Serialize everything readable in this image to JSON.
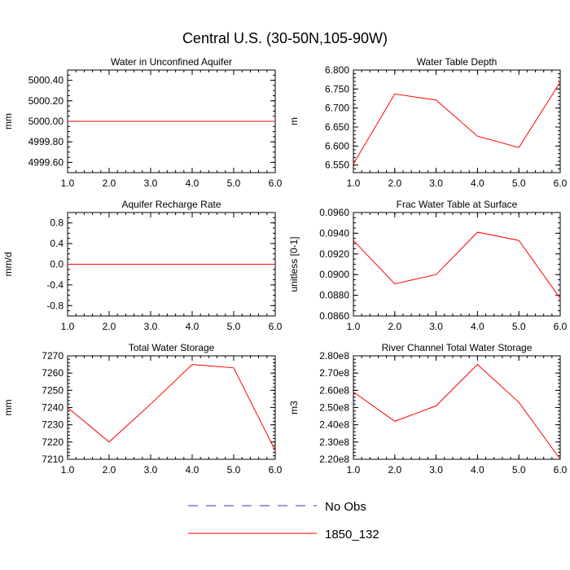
{
  "figure": {
    "title": "Central U.S. (30-50N,105-90W)"
  },
  "colors": {
    "series_1850_132": "#ff0000",
    "series_no_obs": "#3333cc",
    "axis": "#000000"
  },
  "legend": [
    {
      "label": "No Obs",
      "style": "dashed",
      "color": "#3333cc"
    },
    {
      "label": "1850_132",
      "style": "solid",
      "color": "#ff0000"
    }
  ],
  "chart_data": [
    {
      "type": "line",
      "title": "Water in Unconfined Aquifer",
      "xlabel": "",
      "ylabel": "mm",
      "x": [
        1,
        2,
        3,
        4,
        5,
        6
      ],
      "xlim": [
        1,
        6
      ],
      "xticks": [
        "1.0",
        "2.0",
        "3.0",
        "4.0",
        "5.0",
        "6.0"
      ],
      "ylim": [
        4999.5,
        5000.5
      ],
      "yticks": [
        5000.4,
        5000.2,
        5000.0,
        4999.8,
        4999.6
      ],
      "ytick_labels": [
        "5000.40",
        "5000.20",
        "5000.00",
        "4999.80",
        "4999.60"
      ],
      "yminor": 0.05,
      "series": [
        {
          "name": "1850_132",
          "values": [
            5000,
            5000,
            5000,
            5000,
            5000,
            5000
          ]
        }
      ]
    },
    {
      "type": "line",
      "title": "Water Table Depth",
      "xlabel": "",
      "ylabel": "m",
      "x": [
        1,
        2,
        3,
        4,
        5,
        6
      ],
      "xlim": [
        1,
        6
      ],
      "xticks": [
        "1.0",
        "2.0",
        "3.0",
        "4.0",
        "5.0",
        "6.0"
      ],
      "ylim": [
        6.53,
        6.8
      ],
      "yticks": [
        6.8,
        6.75,
        6.7,
        6.65,
        6.6,
        6.55
      ],
      "ytick_labels": [
        "6.800",
        "6.750",
        "6.700",
        "6.650",
        "6.600",
        "6.550"
      ],
      "yminor": 0.01,
      "series": [
        {
          "name": "1850_132",
          "values": [
            6.553,
            6.737,
            6.721,
            6.626,
            6.596,
            6.768
          ]
        }
      ]
    },
    {
      "type": "line",
      "title": "Aquifer Recharge Rate",
      "xlabel": "",
      "ylabel": "mm/d",
      "x": [
        1,
        2,
        3,
        4,
        5,
        6
      ],
      "xlim": [
        1,
        6
      ],
      "xticks": [
        "1.0",
        "2.0",
        "3.0",
        "4.0",
        "5.0",
        "6.0"
      ],
      "ylim": [
        -1.0,
        1.0
      ],
      "yticks": [
        0.8,
        0.4,
        0.0,
        -0.4,
        -0.8
      ],
      "ytick_labels": [
        "0.8",
        "0.4",
        "0.0",
        "-0.4",
        "-0.8"
      ],
      "yminor": 0.1,
      "series": [
        {
          "name": "1850_132",
          "values": [
            0,
            0,
            0,
            0,
            0,
            0
          ]
        }
      ]
    },
    {
      "type": "line",
      "title": "Frac Water Table at Surface",
      "xlabel": "",
      "ylabel": "unitless [0-1]",
      "x": [
        1,
        2,
        3,
        4,
        5,
        6
      ],
      "xlim": [
        1,
        6
      ],
      "xticks": [
        "1.0",
        "2.0",
        "3.0",
        "4.0",
        "5.0",
        "6.0"
      ],
      "ylim": [
        0.086,
        0.096
      ],
      "yticks": [
        0.096,
        0.094,
        0.092,
        0.09,
        0.088,
        0.086
      ],
      "ytick_labels": [
        "0.0960",
        "0.0940",
        "0.0920",
        "0.0900",
        "0.0880",
        "0.0860"
      ],
      "yminor": 0.0005,
      "series": [
        {
          "name": "1850_132",
          "values": [
            0.0933,
            0.0891,
            0.09,
            0.0941,
            0.0933,
            0.0877
          ]
        }
      ]
    },
    {
      "type": "line",
      "title": "Total Water Storage",
      "xlabel": "",
      "ylabel": "mm",
      "x": [
        1,
        2,
        3,
        4,
        5,
        6
      ],
      "xlim": [
        1,
        6
      ],
      "xticks": [
        "1.0",
        "2.0",
        "3.0",
        "4.0",
        "5.0",
        "6.0"
      ],
      "ylim": [
        7210,
        7270
      ],
      "yticks": [
        7270,
        7260,
        7250,
        7240,
        7230,
        7220,
        7210
      ],
      "ytick_labels": [
        "7270",
        "7260",
        "7250",
        "7240",
        "7230",
        "7220",
        "7210"
      ],
      "yminor": 2,
      "series": [
        {
          "name": "1850_132",
          "values": [
            7240,
            7220,
            7242,
            7265,
            7263,
            7215
          ]
        }
      ]
    },
    {
      "type": "line",
      "title": "River Channel Total Water Storage",
      "xlabel": "",
      "ylabel": "m3",
      "x": [
        1,
        2,
        3,
        4,
        5,
        6
      ],
      "xlim": [
        1,
        6
      ],
      "xticks": [
        "1.0",
        "2.0",
        "3.0",
        "4.0",
        "5.0",
        "6.0"
      ],
      "ylim": [
        220000000,
        280000000
      ],
      "yticks": [
        280000000,
        270000000,
        260000000,
        250000000,
        240000000,
        230000000,
        220000000
      ],
      "ytick_labels": [
        "2.80e8",
        "2.70e8",
        "2.60e8",
        "2.50e8",
        "2.40e8",
        "2.30e8",
        "2.20e8"
      ],
      "yminor": 2000000,
      "series": [
        {
          "name": "1850_132",
          "values": [
            259000000,
            242000000,
            251000000,
            275000000,
            253000000,
            220000000
          ]
        }
      ]
    }
  ]
}
